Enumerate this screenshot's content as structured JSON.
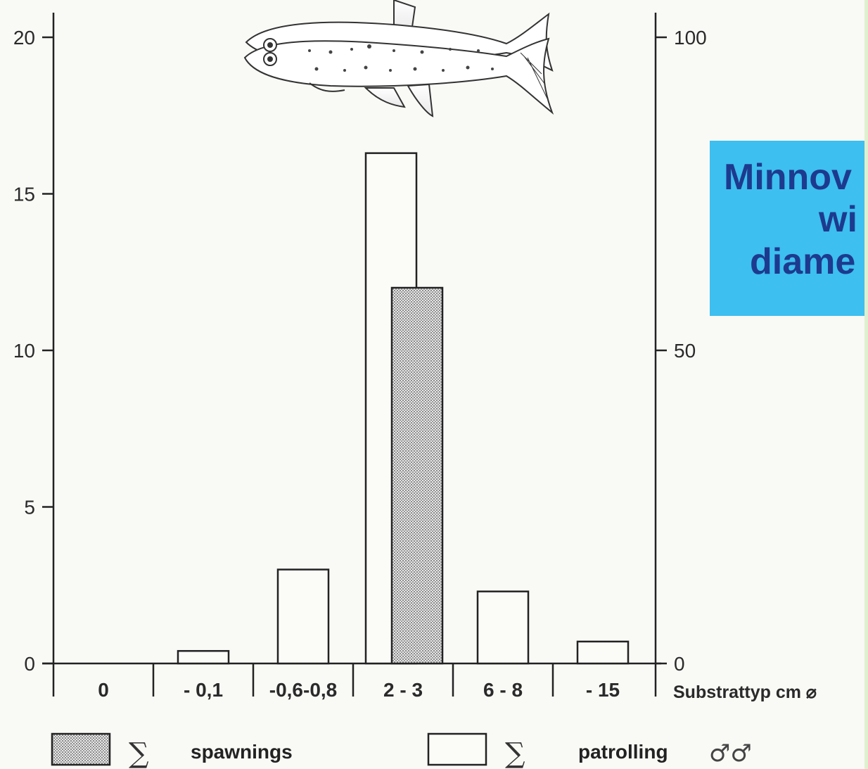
{
  "chart_data": {
    "type": "bar",
    "categories": [
      "0",
      "- 0,1",
      "-0,6-0,8",
      "2 - 3",
      "6 - 8",
      "- 15"
    ],
    "series": [
      {
        "name": "patrolling",
        "axis": "left",
        "fill": "none",
        "values": [
          0,
          0.4,
          3.0,
          16.3,
          2.3,
          0.7
        ]
      },
      {
        "name": "spawnings",
        "axis": "right",
        "fill": "stipple",
        "values": [
          null,
          null,
          null,
          60,
          null,
          null
        ]
      }
    ],
    "y_left": {
      "ticks": [
        "0",
        "5",
        "10",
        "15",
        "20"
      ],
      "ylim": [
        0,
        20
      ]
    },
    "y_right": {
      "ticks": [
        "0",
        "50",
        "100"
      ],
      "ylim": [
        0,
        100
      ]
    },
    "xlabel": "Substrattyp cm ⌀",
    "grid": false
  },
  "legend": [
    {
      "symbol": "∑",
      "label": "spawnings",
      "swatch": "stipple"
    },
    {
      "symbol": "∑",
      "label": "patrolling",
      "swatch": "empty",
      "suffix": "♂♂"
    }
  ],
  "callout": {
    "lines": [
      "Minnov",
      "wi",
      "diame"
    ]
  },
  "colors": {
    "callout_bg": "#3dbfef",
    "callout_text": "#1d3a8f",
    "ink": "#2a2a2a",
    "stipple": "#b8b8b8"
  },
  "illustration": "minnow-pair-drawing"
}
